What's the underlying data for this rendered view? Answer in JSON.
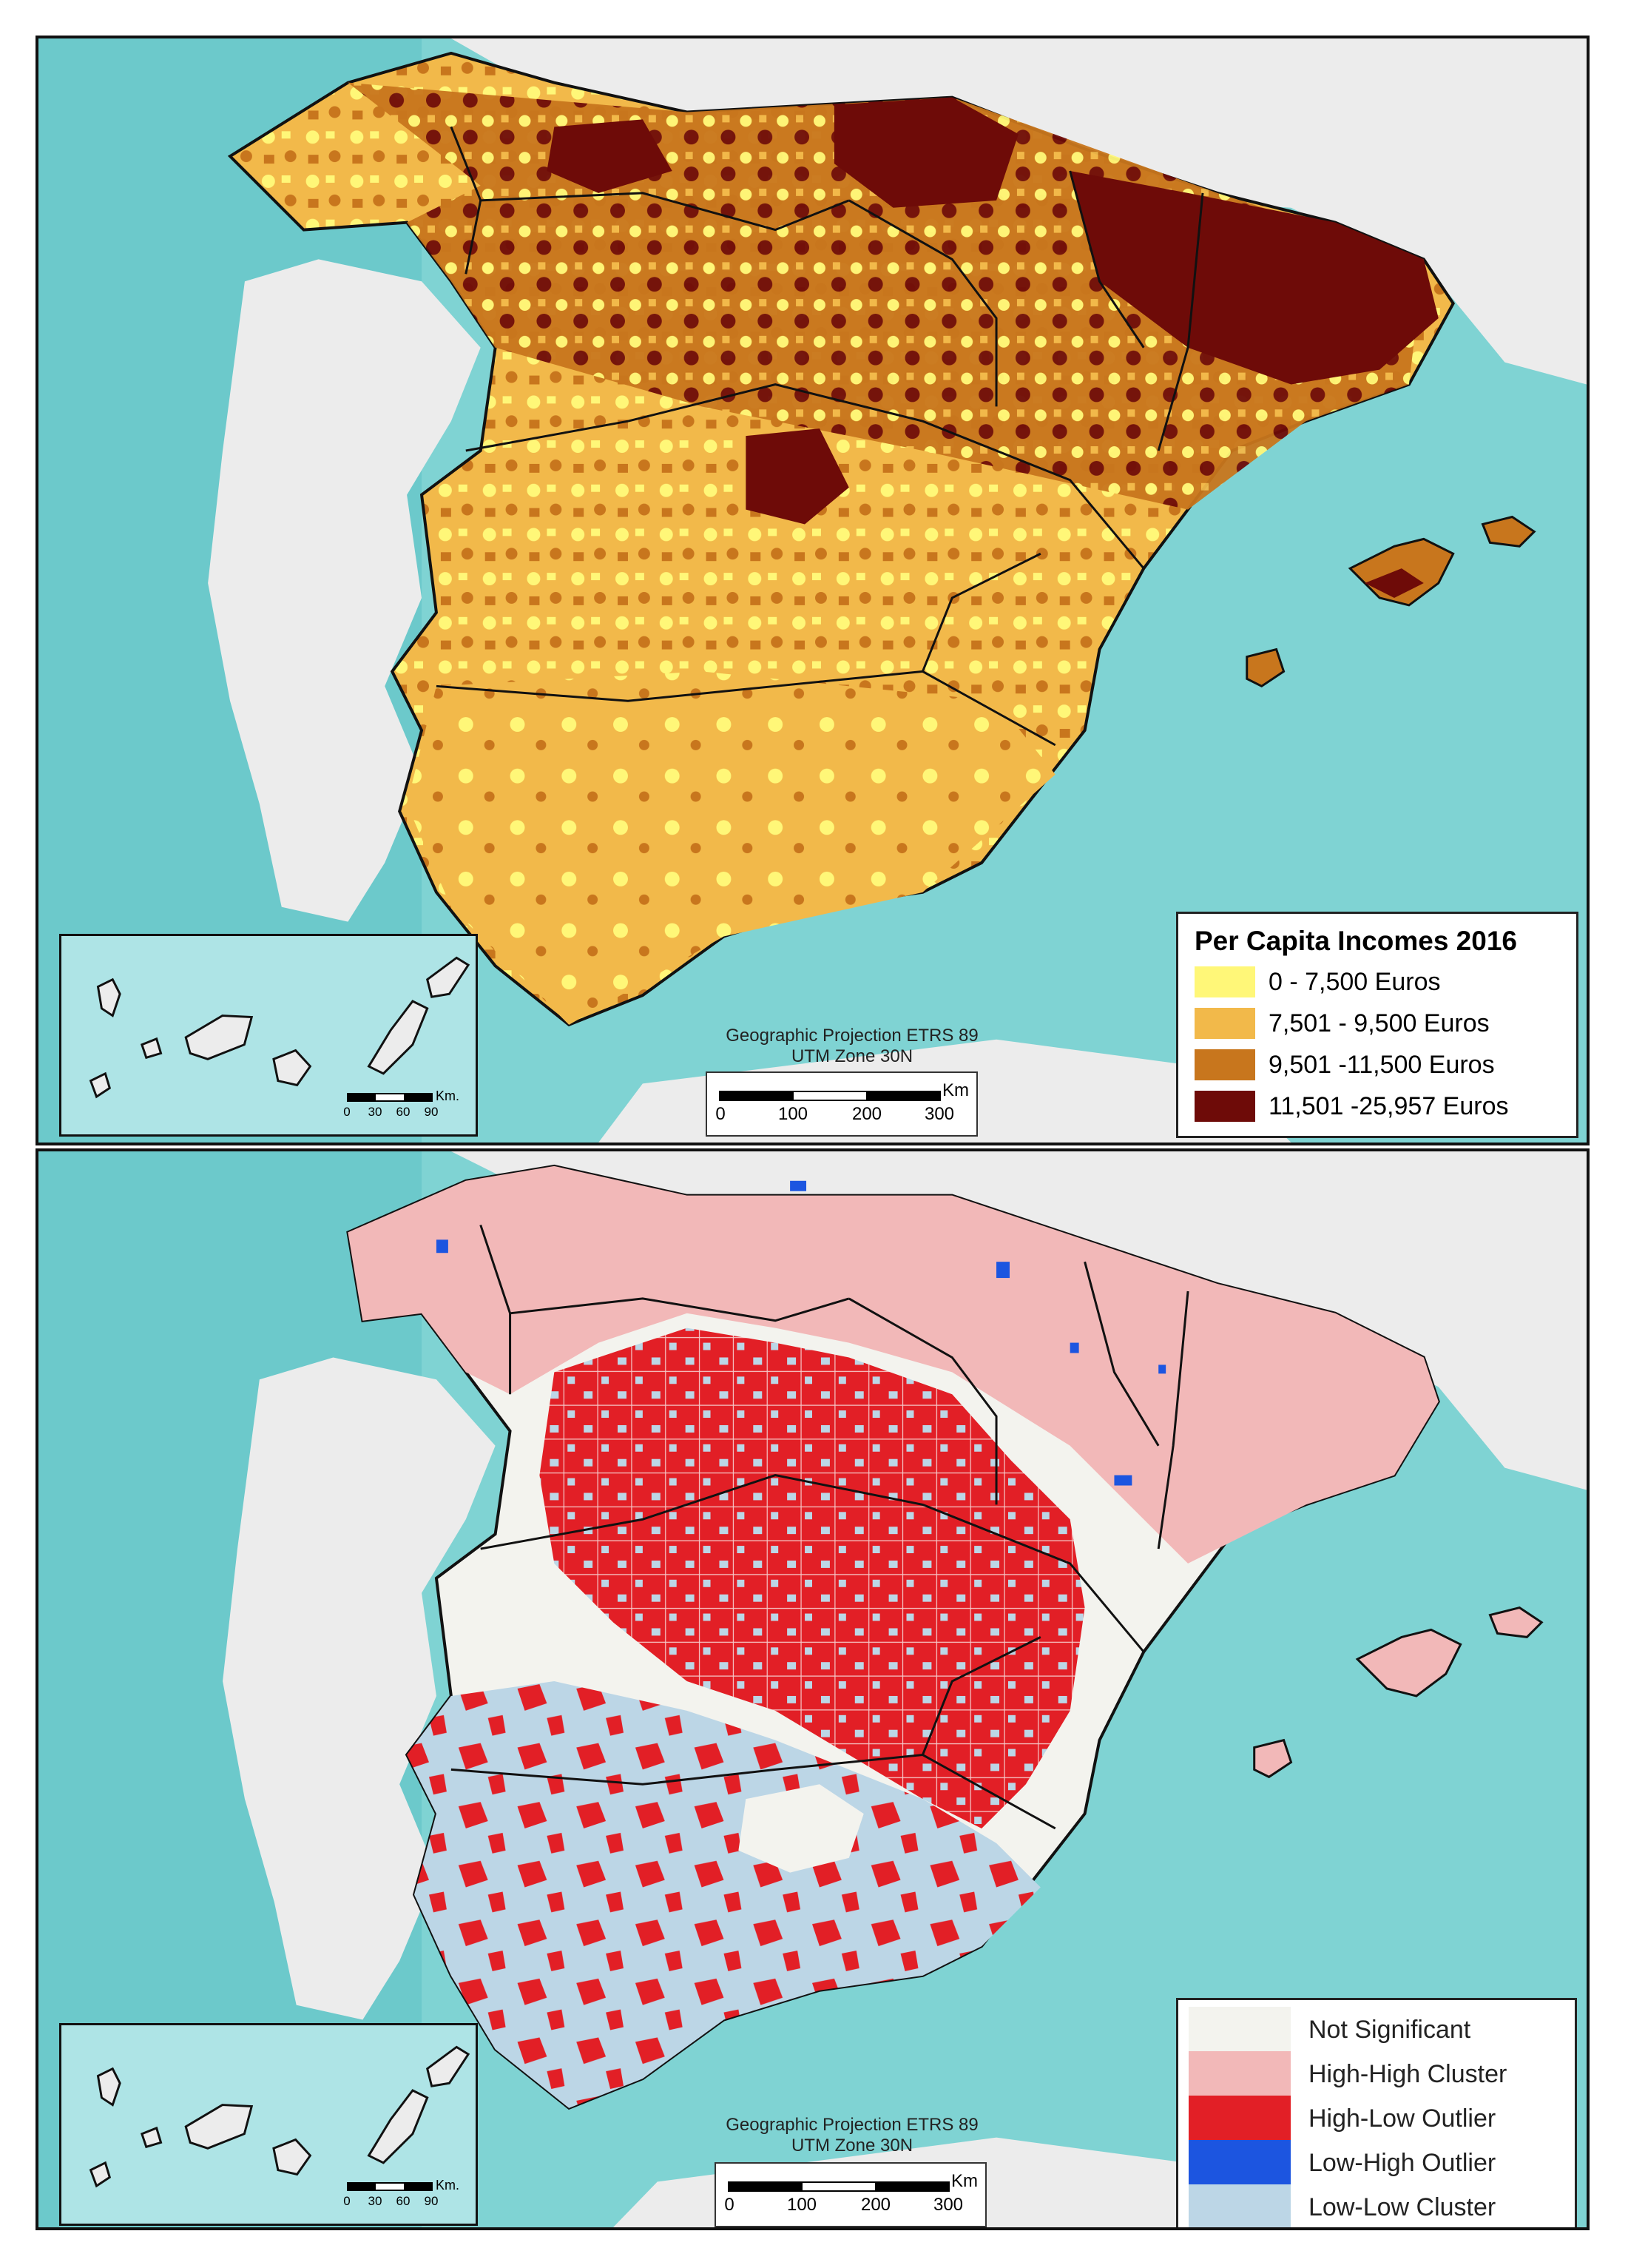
{
  "top_map": {
    "legend_title": "Per Capita Incomes 2016",
    "legend": [
      {
        "label": "0 - 7,500 Euros",
        "color": "#fff778"
      },
      {
        "label": "7,501 - 9,500 Euros",
        "color": "#f2b94a"
      },
      {
        "label": "9,501 -11,500 Euros",
        "color": "#c8761d"
      },
      {
        "label": "11,501 -25,957 Euros",
        "color": "#6e0b08"
      }
    ],
    "projection_line1": "Geographic Projection ETRS 89",
    "projection_line2": "UTM Zone 30N",
    "scale_unit": "Km",
    "scale_ticks": [
      "0",
      "100",
      "200",
      "300"
    ],
    "inset_scale_unit": "Km.",
    "inset_scale_ticks": [
      "0",
      "30",
      "60",
      "90"
    ]
  },
  "bottom_map": {
    "legend": [
      {
        "label": "Not Significant",
        "color": "#f3f3ee"
      },
      {
        "label": "High-High Cluster",
        "color": "#f2b8b8"
      },
      {
        "label": "High-Low Outlier",
        "color": "#e21f26"
      },
      {
        "label": "Low-High Outlier",
        "color": "#1c55e0"
      },
      {
        "label": "Low-Low Cluster",
        "color": "#bcd6e6"
      }
    ],
    "projection_line1": "Geographic Projection ETRS 89",
    "projection_line2": "UTM Zone 30N",
    "scale_unit": "Km",
    "scale_ticks": [
      "0",
      "100",
      "200",
      "300"
    ],
    "inset_scale_unit": "Km.",
    "inset_scale_ticks": [
      "0",
      "30",
      "60",
      "90"
    ]
  },
  "colors": {
    "sea": "#7fd3d3",
    "land_other": "#ececec",
    "border": "#111111"
  }
}
